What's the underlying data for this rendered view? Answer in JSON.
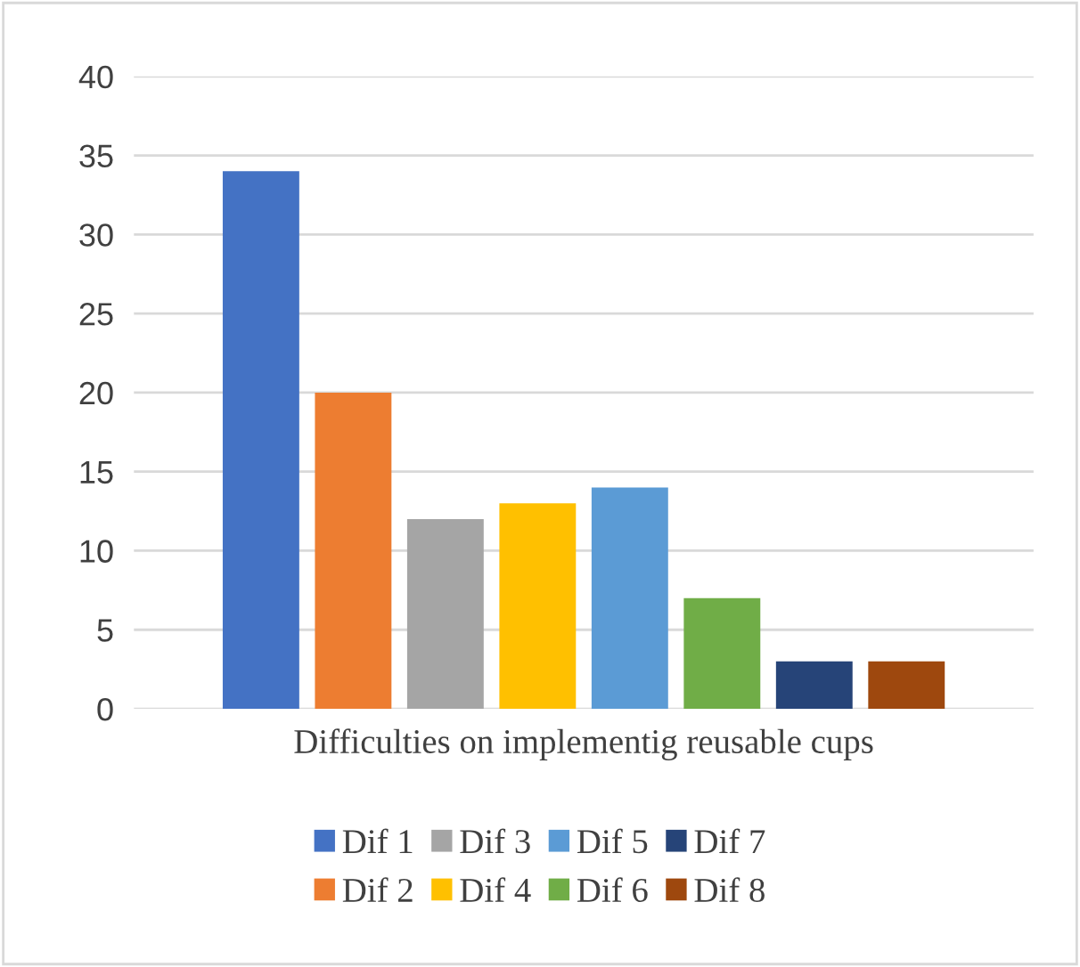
{
  "chart_data": {
    "type": "bar",
    "categories": [
      "Difficulties on implementig reusable cups"
    ],
    "series": [
      {
        "name": "Dif 1",
        "color": "#4472c4",
        "values": [
          34
        ]
      },
      {
        "name": "Dif 2",
        "color": "#ed7d31",
        "values": [
          20
        ]
      },
      {
        "name": "Dif 3",
        "color": "#a5a5a5",
        "values": [
          12
        ]
      },
      {
        "name": "Dif 4",
        "color": "#ffc000",
        "values": [
          13
        ]
      },
      {
        "name": "Dif 5",
        "color": "#5b9bd5",
        "values": [
          14
        ]
      },
      {
        "name": "Dif 6",
        "color": "#70ad47",
        "values": [
          7
        ]
      },
      {
        "name": "Dif 7",
        "color": "#264478",
        "values": [
          3
        ]
      },
      {
        "name": "Dif 8",
        "color": "#9e480e",
        "values": [
          3
        ]
      }
    ],
    "ylim": [
      0,
      40
    ],
    "yticks": [
      0,
      5,
      10,
      15,
      20,
      25,
      30,
      35,
      40
    ],
    "grid": "y",
    "legend": "bottom"
  }
}
